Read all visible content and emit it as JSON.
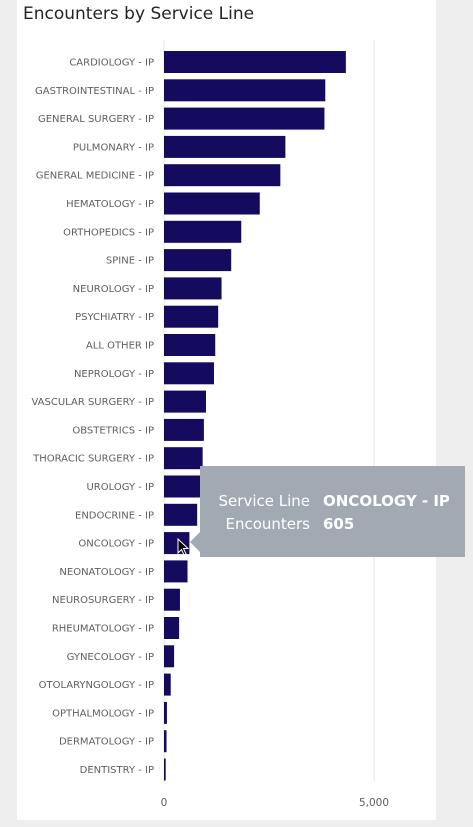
{
  "title": "Encounters by Service Line",
  "tooltip": {
    "rows": [
      {
        "key": "Service Line",
        "value": "ONCOLOGY - IP"
      },
      {
        "key": "Encounters",
        "value": "605"
      }
    ]
  },
  "colors": {
    "bar": "#140a5e",
    "gridline": "#e6e6e6",
    "tooltip_bg": "#a1aab3"
  },
  "chart_data": {
    "type": "bar",
    "orientation": "horizontal",
    "categories": [
      "CARDIOLOGY - IP",
      "GASTROINTESTINAL - IP",
      "GENERAL SURGERY - IP",
      "PULMONARY - IP",
      "GENERAL MEDICINE - IP",
      "HEMATOLOGY - IP",
      "ORTHOPEDICS - IP",
      "SPINE - IP",
      "NEUROLOGY - IP",
      "PSYCHIATRY - IP",
      "ALL OTHER IP",
      "NEPROLOGY - IP",
      "VASCULAR SURGERY - IP",
      "OBSTETRICS - IP",
      "THORACIC SURGERY - IP",
      "UROLOGY - IP",
      "ENDOCRINE - IP",
      "ONCOLOGY - IP",
      "NEONATOLOGY - IP",
      "NEUROSURGERY - IP",
      "RHEUMATOLOGY - IP",
      "GYNECOLOGY - IP",
      "OTOLARYNGOLOGY - IP",
      "OPTHALMOLOGY - IP",
      "DERMATOLOGY - IP",
      "DENTISTRY - IP"
    ],
    "values": [
      4330,
      3840,
      3820,
      2890,
      2770,
      2280,
      1840,
      1600,
      1370,
      1290,
      1220,
      1190,
      1000,
      950,
      920,
      880,
      790,
      605,
      560,
      380,
      360,
      240,
      160,
      70,
      60,
      40
    ],
    "xticks": [
      0,
      5000
    ],
    "xtick_labels": [
      "0",
      "5,000"
    ],
    "xlim": [
      0,
      6200
    ],
    "grid": true,
    "title": "Encounters by Service Line",
    "xlabel": "",
    "ylabel": ""
  }
}
